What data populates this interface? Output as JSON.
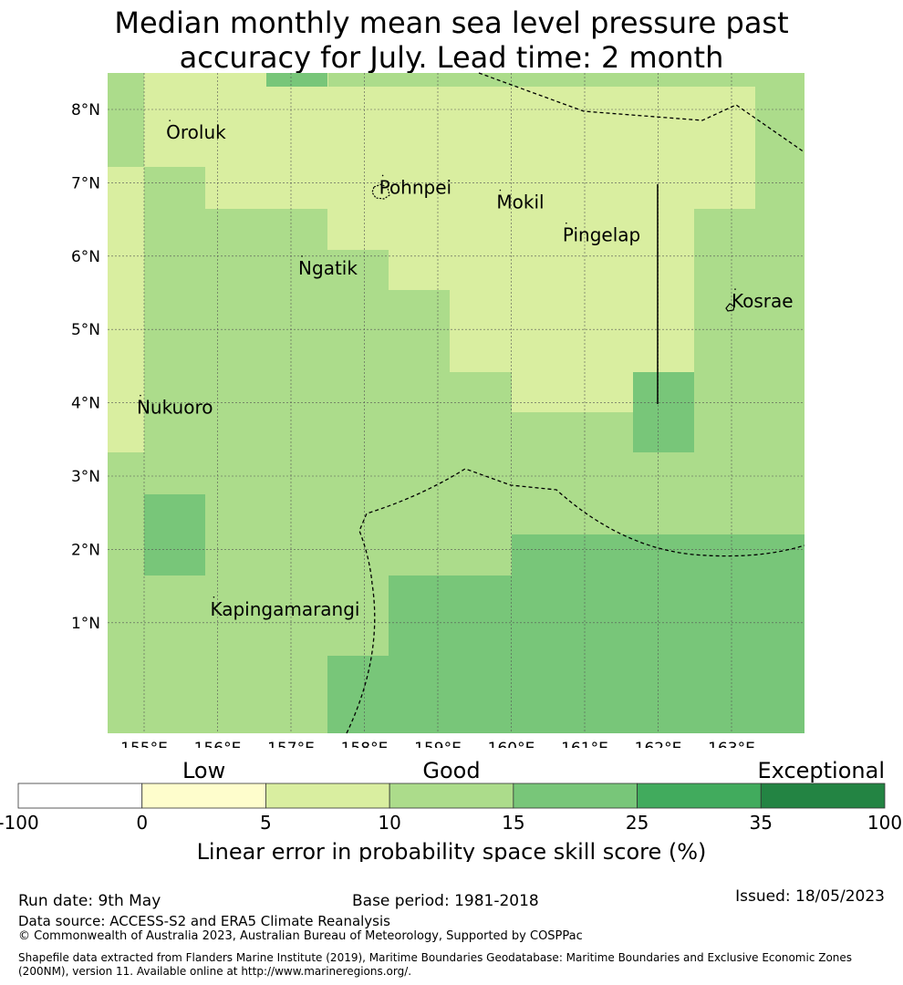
{
  "title": {
    "line1": "Median monthly mean sea level pressure past",
    "line2": "accuracy for July. Lead time: 2 month"
  },
  "map": {
    "lat_labels": [
      "8°N",
      "7°N",
      "6°N",
      "5°N",
      "4°N",
      "3°N",
      "2°N",
      "1°N"
    ],
    "lat_values": [
      8,
      7,
      6,
      5,
      4,
      3,
      2,
      1
    ],
    "lon_labels": [
      "155°E",
      "156°E",
      "157°E",
      "158°E",
      "159°E",
      "160°E",
      "161°E",
      "162°E",
      "163°E"
    ],
    "lon_values": [
      155,
      156,
      157,
      158,
      159,
      160,
      161,
      162,
      163
    ],
    "extent": {
      "lon_min": 154.5,
      "lon_max": 164.0,
      "lat_min": -0.3,
      "lat_max": 8.5
    },
    "places": [
      {
        "name": "Oroluk",
        "lon": 155.3,
        "lat": 7.6
      },
      {
        "name": "Pohnpei",
        "lon": 158.2,
        "lat": 6.85
      },
      {
        "name": "Mokil",
        "lon": 159.8,
        "lat": 6.65
      },
      {
        "name": "Pingelap",
        "lon": 160.7,
        "lat": 6.2
      },
      {
        "name": "Ngatik",
        "lon": 157.1,
        "lat": 5.75
      },
      {
        "name": "Kosrae",
        "lon": 163.0,
        "lat": 5.3
      },
      {
        "name": "Nukuoro",
        "lon": 154.9,
        "lat": 3.85
      },
      {
        "name": "Kapingamarangi",
        "lon": 155.9,
        "lat": 1.1
      }
    ]
  },
  "colorbar": {
    "categories": [
      "Low",
      "Good",
      "Exceptional"
    ],
    "ticks": [
      "-100",
      "0",
      "5",
      "10",
      "15",
      "25",
      "35",
      "100"
    ],
    "colors": [
      "#ffffff",
      "#fefdcc",
      "#d9eea0",
      "#acdc8b",
      "#78c679",
      "#41ab5d",
      "#238443"
    ],
    "label": "Linear error in probability space skill score (%)"
  },
  "footer": {
    "run_date": "Run date: 9th May",
    "base_period": "Base period: 1981-2018",
    "issued": "Issued: 18/05/2023",
    "data_source": "Data source: ACCESS-S2 and ERA5 Climate Reanalysis",
    "copyright": "© Commonwealth of Australia 2023, Australian Bureau of Meteorology, Supported by COSPPac",
    "shapefile": "Shapefile data extracted from Flanders Marine Institute (2019), Maritime Boundaries Geodatabase: Maritime Boundaries and Exclusive Economic Zones (200NM), version 11. Available online at http://www.marineregions.org/."
  }
}
